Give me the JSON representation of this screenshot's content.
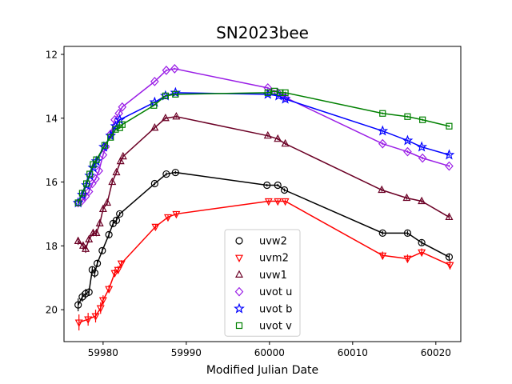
{
  "chart_data": {
    "type": "scatter",
    "title": "SN2023bee",
    "xlabel": "Modified Julian Date",
    "ylabel": "",
    "xlim": [
      59975.3,
      60023.0
    ],
    "ylim": [
      21.0,
      11.75
    ],
    "y_inverted": true,
    "xticks": [
      59980,
      59990,
      60000,
      60010,
      60020
    ],
    "yticks": [
      12,
      14,
      16,
      18,
      20
    ],
    "grid": false,
    "legend_position": "bottom-center",
    "series": [
      {
        "name": "uvw2",
        "color": "#000000",
        "marker": "circle-open",
        "x": [
          59977.0,
          59977.5,
          59977.9,
          59978.3,
          59978.7,
          59979.0,
          59979.3,
          59979.9,
          59980.7,
          59981.2,
          59981.6,
          59982.0,
          59986.2,
          59987.6,
          59988.7,
          59999.7,
          60001.0,
          60001.8,
          60013.6,
          60016.6,
          60018.3,
          60021.6
        ],
        "y": [
          19.85,
          19.6,
          19.5,
          19.45,
          18.75,
          18.85,
          18.55,
          18.15,
          17.65,
          17.3,
          17.2,
          17.0,
          16.05,
          15.75,
          15.7,
          16.1,
          16.1,
          16.25,
          17.6,
          17.6,
          17.9,
          18.35
        ],
        "yerr": [
          0.2,
          0.15,
          0.15,
          0.12,
          0.1,
          0.15,
          0.1,
          0.08,
          0.08,
          0.08,
          0.08,
          0.06,
          0.05,
          0.05,
          0.05,
          0.04,
          0.04,
          0.05,
          0.06,
          0.07,
          0.08,
          0.09
        ]
      },
      {
        "name": "uvm2",
        "color": "#ff0000",
        "marker": "triangle-down-open",
        "x": [
          59977.1,
          59978.2,
          59979.1,
          59979.7,
          59980.0,
          59980.7,
          59981.4,
          59981.8,
          59982.2,
          59986.3,
          59987.8,
          59988.8,
          59999.9,
          60001.0,
          60001.9,
          60013.6,
          60016.6,
          60018.3,
          60021.7
        ],
        "y": [
          20.4,
          20.3,
          20.2,
          19.95,
          19.7,
          19.35,
          18.85,
          18.75,
          18.55,
          17.4,
          17.1,
          17.0,
          16.6,
          16.6,
          16.6,
          18.3,
          18.4,
          18.2,
          18.6
        ],
        "yerr": [
          0.25,
          0.2,
          0.2,
          0.18,
          0.15,
          0.12,
          0.12,
          0.12,
          0.1,
          0.06,
          0.06,
          0.06,
          0.05,
          0.05,
          0.05,
          0.12,
          0.13,
          0.12,
          0.14
        ]
      },
      {
        "name": "uvw1",
        "color": "#6b0025",
        "marker": "triangle-up-open",
        "x": [
          59977.0,
          59977.6,
          59977.9,
          59978.3,
          59978.8,
          59979.2,
          59979.6,
          59980.0,
          59980.5,
          59981.1,
          59981.6,
          59982.1,
          59982.4,
          59986.2,
          59987.5,
          59988.8,
          59999.8,
          60001.0,
          60001.9,
          60013.5,
          60016.5,
          60018.3,
          60021.6
        ],
        "y": [
          17.85,
          18.0,
          18.1,
          17.8,
          17.6,
          17.6,
          17.3,
          16.85,
          16.65,
          16.0,
          15.7,
          15.35,
          15.2,
          14.3,
          14.0,
          13.95,
          14.55,
          14.65,
          14.8,
          16.25,
          16.5,
          16.6,
          17.1
        ],
        "yerr": [
          0.12,
          0.12,
          0.12,
          0.1,
          0.1,
          0.1,
          0.08,
          0.08,
          0.06,
          0.06,
          0.05,
          0.05,
          0.05,
          0.04,
          0.04,
          0.04,
          0.04,
          0.04,
          0.04,
          0.05,
          0.05,
          0.05,
          0.06
        ]
      },
      {
        "name": "uvot u",
        "color": "#9a1ee6",
        "marker": "diamond-open",
        "x": [
          59977.0,
          59977.4,
          59977.9,
          59978.3,
          59978.7,
          59979.1,
          59979.5,
          59980.0,
          59980.3,
          59980.9,
          59981.4,
          59981.9,
          59982.3,
          59986.2,
          59987.6,
          59988.6,
          59999.8,
          60001.0,
          60001.9,
          60013.6,
          60016.6,
          60018.4,
          60021.6
        ],
        "y": [
          16.65,
          16.6,
          16.45,
          16.3,
          16.05,
          15.9,
          15.65,
          15.15,
          14.9,
          14.5,
          14.05,
          13.85,
          13.65,
          12.85,
          12.5,
          12.45,
          13.05,
          13.2,
          13.35,
          14.8,
          15.05,
          15.25,
          15.5
        ],
        "yerr": [
          0.06,
          0.05,
          0.05,
          0.05,
          0.05,
          0.04,
          0.04,
          0.04,
          0.04,
          0.04,
          0.03,
          0.03,
          0.03,
          0.03,
          0.03,
          0.03,
          0.03,
          0.03,
          0.03,
          0.04,
          0.04,
          0.04,
          0.04
        ]
      },
      {
        "name": "uvot b",
        "color": "#0000ff",
        "marker": "star-open",
        "x": [
          59977.0,
          59977.5,
          59978.0,
          59978.4,
          59978.8,
          59979.2,
          59980.1,
          59980.9,
          59981.5,
          59982.0,
          59986.2,
          59987.5,
          59988.7,
          59999.8,
          60001.1,
          60001.9,
          60013.6,
          60016.6,
          60018.3,
          60021.6
        ],
        "y": [
          16.65,
          16.4,
          16.1,
          15.8,
          15.55,
          15.35,
          14.9,
          14.55,
          14.25,
          14.05,
          13.5,
          13.3,
          13.2,
          13.25,
          13.3,
          13.4,
          14.4,
          14.7,
          14.9,
          15.15
        ],
        "yerr": [
          0.05,
          0.05,
          0.04,
          0.04,
          0.04,
          0.04,
          0.03,
          0.03,
          0.03,
          0.03,
          0.03,
          0.03,
          0.03,
          0.03,
          0.03,
          0.03,
          0.03,
          0.03,
          0.03,
          0.04
        ]
      },
      {
        "name": "uvot v",
        "color": "#008000",
        "marker": "square-open",
        "x": [
          59977.0,
          59977.5,
          59978.0,
          59978.4,
          59978.8,
          59979.2,
          59980.2,
          59980.9,
          59981.5,
          59982.0,
          59982.3,
          59986.1,
          59987.5,
          59988.7,
          59999.8,
          60000.6,
          60001.3,
          60001.9,
          60013.6,
          60016.6,
          60018.4,
          60021.6
        ],
        "y": [
          16.65,
          16.35,
          16.05,
          15.75,
          15.45,
          15.3,
          14.85,
          14.6,
          14.35,
          14.3,
          14.2,
          13.6,
          13.3,
          13.25,
          13.2,
          13.15,
          13.2,
          13.2,
          13.85,
          13.95,
          14.05,
          14.25
        ],
        "yerr": [
          0.05,
          0.05,
          0.05,
          0.04,
          0.04,
          0.04,
          0.03,
          0.03,
          0.03,
          0.03,
          0.03,
          0.03,
          0.03,
          0.03,
          0.03,
          0.03,
          0.03,
          0.03,
          0.03,
          0.03,
          0.03,
          0.03
        ]
      }
    ]
  }
}
